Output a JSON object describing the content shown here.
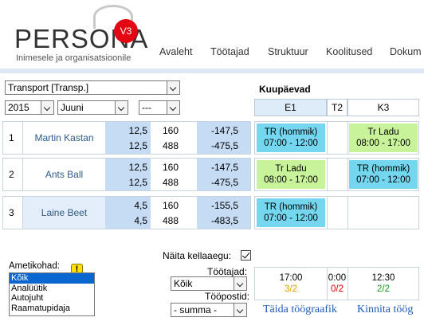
{
  "header": {
    "logo_text": "PERSONA",
    "logo_badge": "V3",
    "tagline": "Inimesele ja organisatsioonile",
    "nav": [
      "Avaleht",
      "Töötajad",
      "Struktuur",
      "Koolitused",
      "Dokum"
    ]
  },
  "filters": {
    "department": "Transport [Transp.]",
    "year": "2015",
    "month": "Juuni",
    "extra": "---"
  },
  "calendar": {
    "title": "Kuupäevad",
    "columns": [
      "E1",
      "T2",
      "K3"
    ]
  },
  "employees": [
    {
      "num": "1",
      "name": "Martin Kastan",
      "v1": [
        "12,5",
        "12,5"
      ],
      "v2": [
        "160",
        "488"
      ],
      "v3": [
        "-147,5",
        "-475,5"
      ],
      "e1": [
        "TR (hommik)",
        "07:00 - 12:00"
      ],
      "e1_color": "#74d7ef",
      "k3": [
        "Tr Ladu",
        "08:00 - 17:00"
      ],
      "k3_color": "#c9f39a"
    },
    {
      "num": "2",
      "name": "Ants Ball",
      "v1": [
        "12,5",
        "12,5"
      ],
      "v2": [
        "160",
        "488"
      ],
      "v3": [
        "-147,5",
        "-475,5"
      ],
      "e1": [
        "Tr Ladu",
        "08:00 - 17:00"
      ],
      "e1_color": "#c9f39a",
      "k3": [
        "TR (hommik)",
        "07:00 - 12:00"
      ],
      "k3_color": "#74d7ef"
    },
    {
      "num": "3",
      "name": "Laine Beet",
      "v1": [
        "4,5",
        "4,5"
      ],
      "v2": [
        "160",
        "488"
      ],
      "v3": [
        "-155,5",
        "-483,5"
      ],
      "e1": [
        "TR (hommik)",
        "07:00 - 12:00"
      ],
      "e1_color": "#74d7ef",
      "k3": null,
      "k3_color": null
    }
  ],
  "ametikohad": {
    "label": "Ametikohad:",
    "warning": "!",
    "options": [
      "Kõik",
      "Analüütik",
      "Autojuht",
      "Raamatupidaja"
    ],
    "selected_index": 0
  },
  "options": {
    "show_times_label": "Näita kellaaegu:",
    "show_times_checked": true,
    "tootajad_label": "Töötajad:",
    "tootajad_value": "Kõik",
    "toopostid_label": "Tööpostid:",
    "toopostid_value": "- summa -"
  },
  "summary": [
    {
      "time": "17:00",
      "count": "3/2",
      "color": "#e0a000"
    },
    {
      "time": "0:00",
      "count": "0/2",
      "color": "#e00000"
    },
    {
      "time": "12:30",
      "count": "2/2",
      "color": "#1a9a1a"
    }
  ],
  "actions": {
    "fill_schedule": "Täida töögraafik",
    "confirm_schedule": "Kinnita töög"
  }
}
